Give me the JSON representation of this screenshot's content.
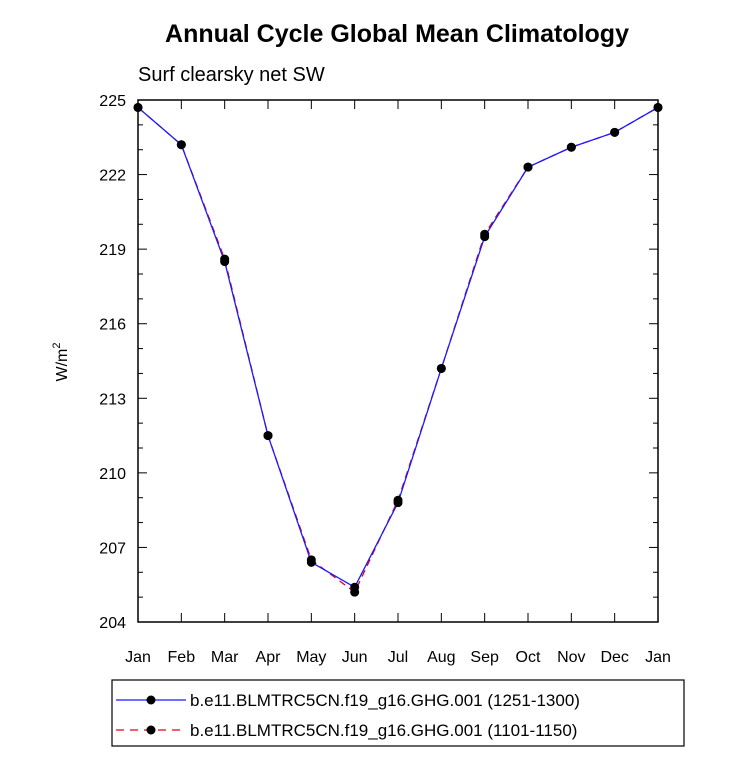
{
  "chart_data": {
    "type": "line",
    "title": "Annual Cycle Global Mean Climatology",
    "subtitle": "Surf clearsky net SW",
    "ylabel_base": "W/m",
    "ylabel_sup": "2",
    "xlabel": "",
    "categories": [
      "Jan",
      "Feb",
      "Mar",
      "Apr",
      "May",
      "Jun",
      "Jul",
      "Aug",
      "Sep",
      "Oct",
      "Nov",
      "Dec",
      "Jan"
    ],
    "ylim": [
      204,
      225
    ],
    "yticks": [
      204,
      207,
      210,
      213,
      216,
      219,
      222,
      225
    ],
    "ytick_labels": [
      "204",
      "207",
      "210",
      "213",
      "216",
      "219",
      "222",
      "225"
    ],
    "grid": false,
    "legend_position": "bottom",
    "series": [
      {
        "name": "b.e11.BLMTRC5CN.f19_g16.GHG.001 (1251-1300)",
        "color": "#1a1aff",
        "style": "solid",
        "values": [
          224.7,
          223.2,
          218.5,
          211.5,
          206.4,
          205.4,
          208.8,
          214.2,
          219.5,
          222.3,
          223.1,
          223.7,
          224.7
        ]
      },
      {
        "name": "b.e11.BLMTRC5CN.f19_g16.GHG.001 (1101-1150)",
        "color": "#e0001b",
        "style": "dashed",
        "values": [
          224.7,
          223.2,
          218.6,
          211.5,
          206.5,
          205.2,
          208.9,
          214.2,
          219.6,
          222.3,
          223.1,
          223.7,
          224.7
        ]
      }
    ]
  }
}
